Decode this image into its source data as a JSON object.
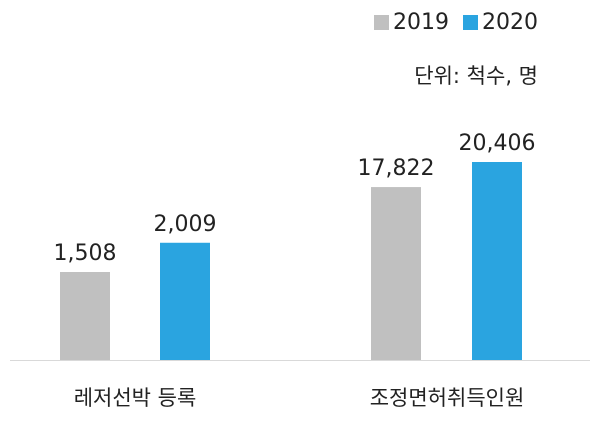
{
  "chart_data": {
    "type": "bar",
    "categories": [
      "레저선박 등록",
      "조정면허취득인원"
    ],
    "series": [
      {
        "name": "2019",
        "values": [
          1508,
          17822
        ],
        "labels": [
          "1,508",
          "17,822"
        ],
        "color": "#c0c0c0"
      },
      {
        "name": "2020",
        "values": [
          2009,
          20406
        ],
        "labels": [
          "2,009",
          "20,406"
        ],
        "color": "#2aa4e0"
      }
    ],
    "unit_label": "단위: 척수, 명",
    "legend_position": "top-right",
    "grid": false,
    "note": "Each category group is drawn on its own visual scale."
  }
}
